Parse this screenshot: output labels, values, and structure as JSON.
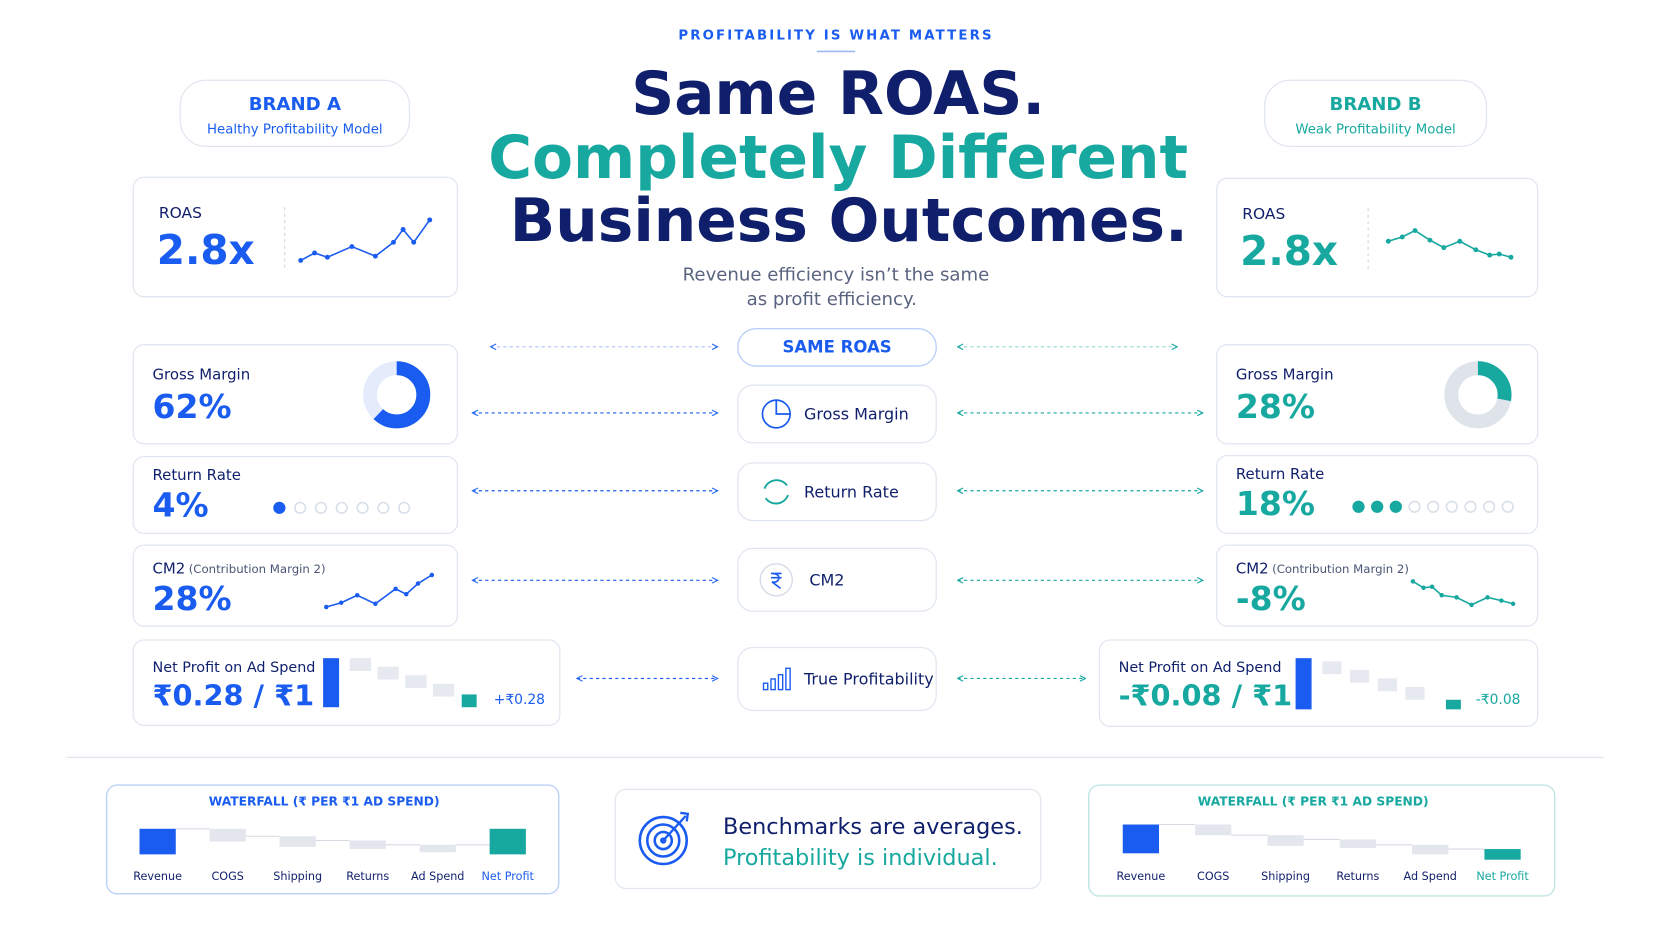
{
  "header": {
    "eyebrow": "PROFITABILITY IS WHAT MATTERS",
    "title_line1": "Same ROAS.",
    "title_line2": "Completely Different",
    "title_line3": "Business Outcomes.",
    "subtitle_line1": "Revenue efficiency isn’t the same",
    "subtitle_line2": "as profit efficiency."
  },
  "brands": [
    {
      "name": "BRAND A",
      "subtitle": "Healthy Profitability Model",
      "roas_label": "ROAS",
      "roas": "2.8x",
      "gross_margin_label": "Gross Margin",
      "gross_margin": {
        "value": 62,
        "label": "62%"
      },
      "return_rate_label": "Return Rate",
      "return_rate": "4%",
      "cm2_label": "CM2",
      "cm2_note": "(Contribution Margin 2)",
      "cm2": "28%",
      "npoas_label": "Net Profit on Ad Spend",
      "npoas": "₹0.28 / ₹1",
      "net_profit": "+₹0.28",
      "waterfall_title": "WATERFALL (₹ PER ₹1 AD SPEND)",
      "waterfall_categories": [
        "Revenue",
        "COGS",
        "Shipping",
        "Returns",
        "Ad Spend",
        "Net Profit"
      ]
    },
    {
      "name": "BRAND B",
      "subtitle": "Weak Profitability Model",
      "roas_label": "ROAS",
      "roas": "2.8x",
      "gross_margin_label": "Gross Margin",
      "gross_margin": {
        "value": 28,
        "label": "28%"
      },
      "return_rate_label": "Return Rate",
      "return_rate": "18%",
      "cm2_label": "CM2",
      "cm2_note": "(Contribution Margin 2)",
      "cm2": "-8%",
      "npoas_label": "Net Profit on Ad Spend",
      "npoas": "-₹0.08 / ₹1",
      "net_profit": "-₹0.08",
      "waterfall_title": "WATERFALL (₹ PER ₹1 AD SPEND)",
      "waterfall_categories": [
        "Revenue",
        "COGS",
        "Shipping",
        "Returns",
        "Ad Spend",
        "Net Profit"
      ]
    }
  ],
  "center": {
    "same_roas": "SAME ROAS",
    "metrics": [
      "Gross Margin",
      "Return Rate",
      "CM2",
      "True Profitability"
    ]
  },
  "footer": {
    "line1": "Benchmarks are averages.",
    "line2": "Profitability is individual."
  }
}
